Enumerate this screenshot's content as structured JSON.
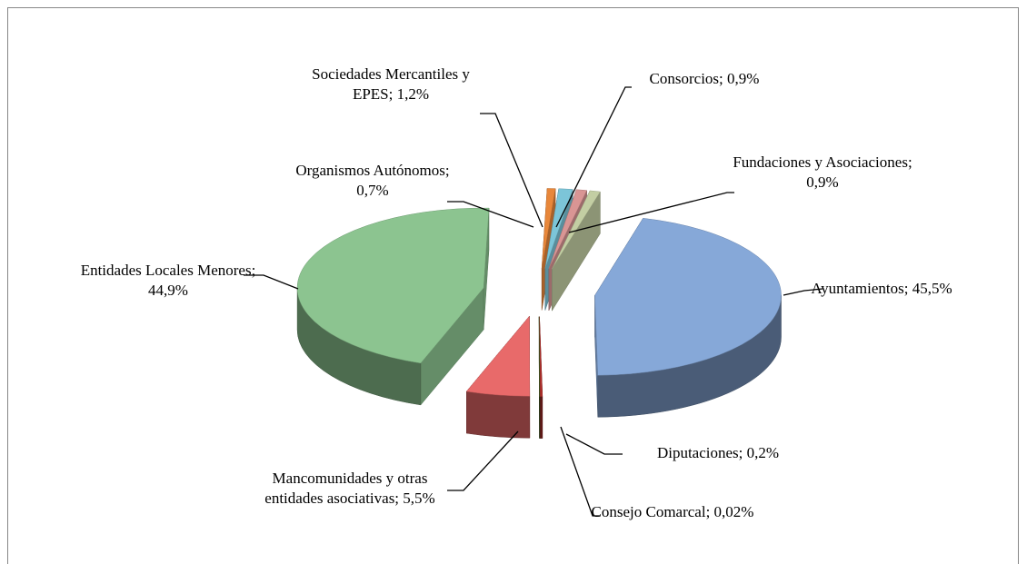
{
  "chart_data": {
    "type": "pie3d",
    "categories": [
      "Ayuntamientos;",
      "Diputaciones;",
      "Consejo Comarcal;",
      "Mancomunidades y otras entidades asociativas;",
      "Entidades Locales Menores;",
      "Organismos Autónomos;",
      "Sociedades Mercantiles y EPES;",
      "Consorcios;",
      "Fundaciones y Asociaciones;"
    ],
    "values": [
      45.5,
      0.2,
      0.02,
      5.5,
      44.9,
      0.7,
      1.2,
      0.9,
      0.9
    ],
    "value_labels": [
      "45,5%",
      "0,2%",
      "0,02%",
      "5,5%",
      "44,9%",
      "0,7%",
      "1,2%",
      "0,9%",
      "0,9%"
    ],
    "colors": [
      "#86a8d8",
      "#b0302c",
      "#4a6a2a",
      "#e86a6a",
      "#8cc490",
      "#e8873a",
      "#7cc5d8",
      "#d99594",
      "#c3cea3"
    ],
    "exploded": true
  }
}
